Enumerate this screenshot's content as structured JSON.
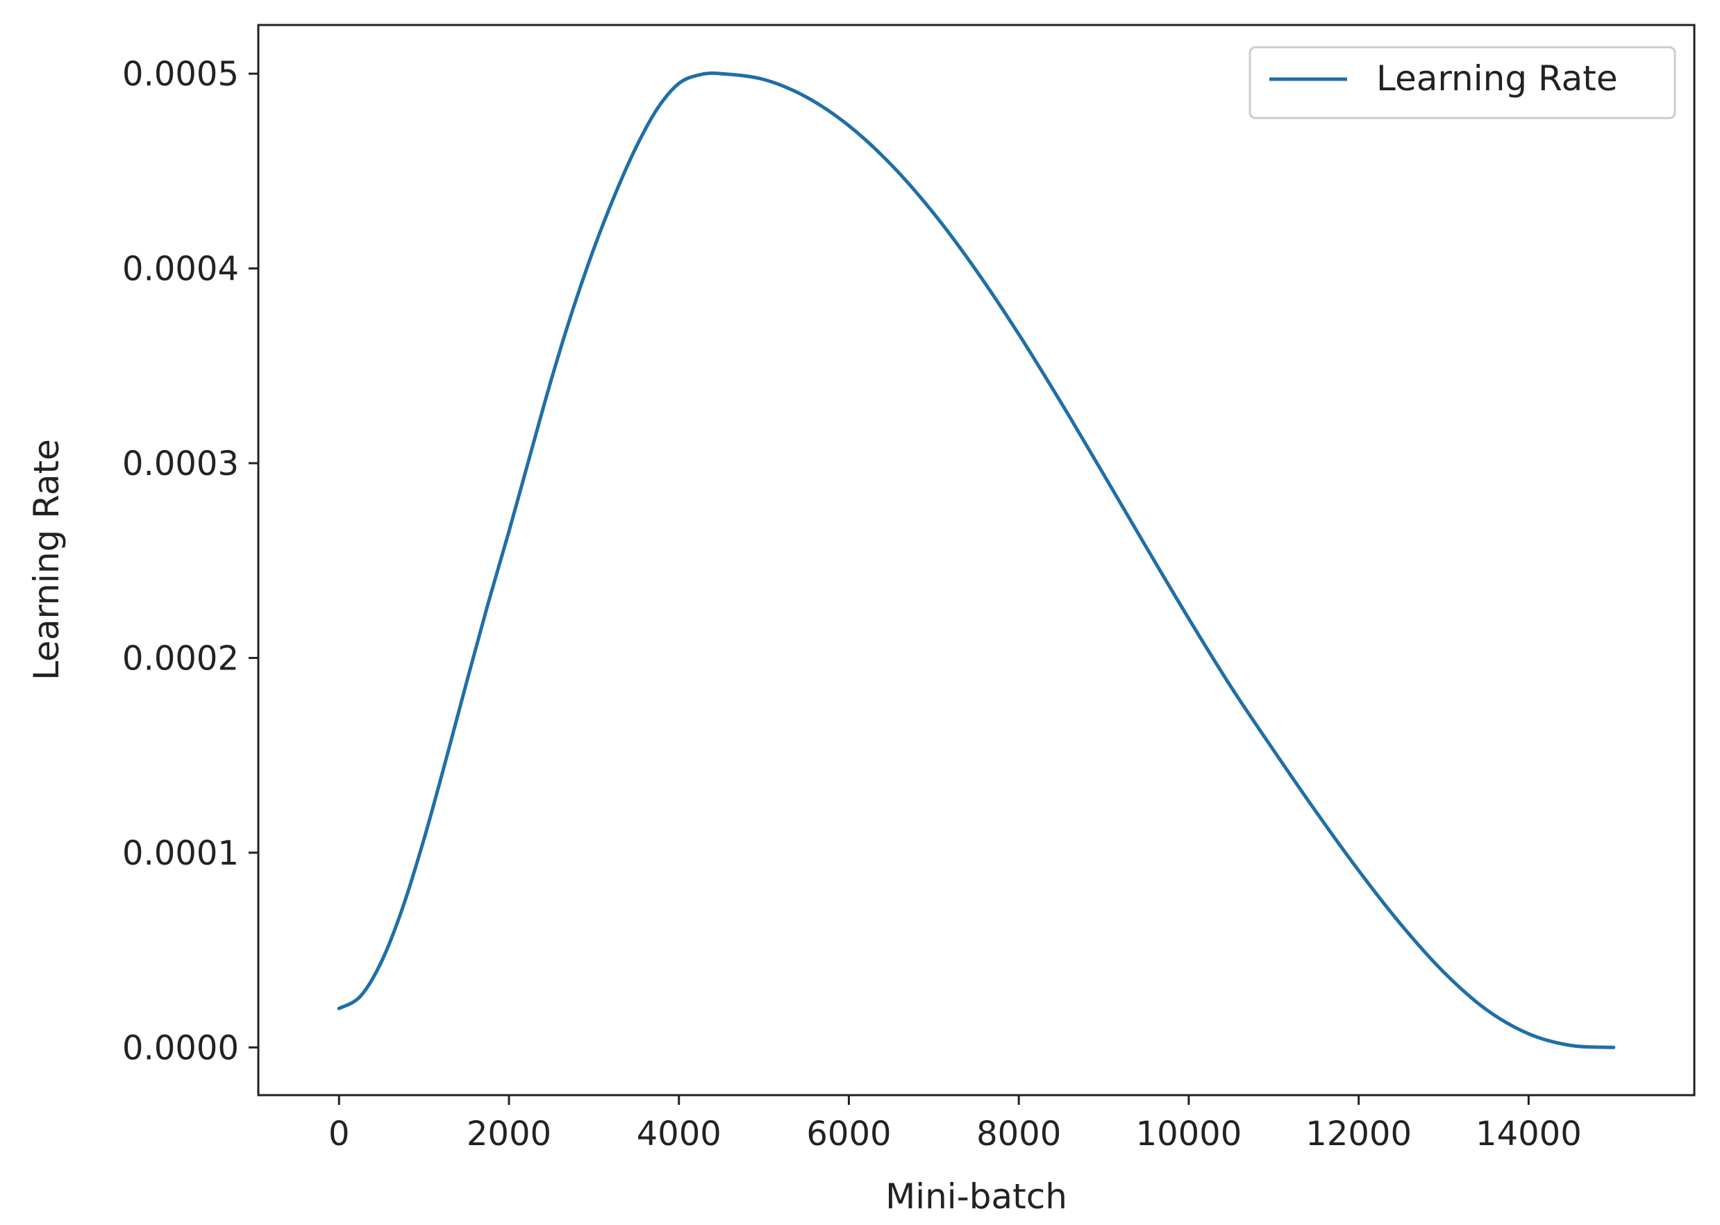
{
  "chart_data": {
    "type": "line",
    "title": "",
    "xlabel": "Mini-batch",
    "ylabel": "Learning Rate",
    "xlim": [
      -950,
      15950
    ],
    "ylim": [
      -2.45e-05,
      0.000525
    ],
    "x_ticks": [
      0,
      2000,
      4000,
      6000,
      8000,
      10000,
      12000,
      14000
    ],
    "x_tick_labels": [
      "0",
      "2000",
      "4000",
      "6000",
      "8000",
      "10000",
      "12000",
      "14000"
    ],
    "y_ticks": [
      0.0,
      0.0001,
      0.0002,
      0.0003,
      0.0004,
      0.0005
    ],
    "y_tick_labels": [
      "0.0000",
      "0.0001",
      "0.0002",
      "0.0003",
      "0.0004",
      "0.0005"
    ],
    "grid": false,
    "legend": {
      "position": "top-right",
      "entries": [
        "Learning Rate"
      ]
    },
    "series": [
      {
        "name": "Learning Rate",
        "color": "#1f6fa6",
        "x": [
          0,
          250,
          500,
          750,
          1000,
          1250,
          1500,
          1750,
          2000,
          2250,
          2500,
          2750,
          3000,
          3250,
          3500,
          3750,
          4000,
          4250,
          4500,
          5000,
          5500,
          6000,
          6500,
          7000,
          7500,
          8000,
          8500,
          9000,
          9500,
          10000,
          10500,
          11000,
          11500,
          12000,
          12500,
          13000,
          13500,
          14000,
          14500,
          15000
        ],
        "y": [
          2e-05,
          2.62e-05,
          4.41e-05,
          7.19e-05,
          0.000107,
          0.0001464,
          0.0001873,
          0.0002273,
          0.000265,
          0.0003043,
          0.0003432,
          0.0003787,
          0.0004103,
          0.0004382,
          0.0004626,
          0.0004823,
          0.000495,
          0.0004995,
          0.0005,
          0.000497,
          0.000488,
          0.0004733,
          0.0004532,
          0.0004282,
          0.0003989,
          0.0003662,
          0.0003309,
          0.0002941,
          0.0002569,
          0.0002202,
          0.000185,
          0.0001525,
          0.0001209,
          9.08e-05,
          6.3e-05,
          3.87e-05,
          1.95e-05,
          7e-06,
          1e-06,
          0.0
        ]
      }
    ]
  }
}
